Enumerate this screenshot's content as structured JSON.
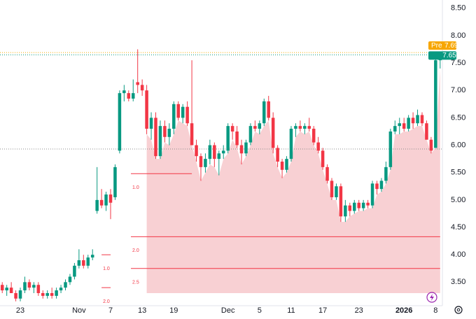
{
  "chart_data": {
    "type": "candlestick",
    "up_color": "#089981",
    "down_color": "#f23645",
    "candles": [
      [
        3.45,
        3.5,
        3.3,
        3.35
      ],
      [
        3.35,
        3.45,
        3.25,
        3.4
      ],
      [
        3.4,
        3.5,
        3.3,
        3.3
      ],
      [
        3.3,
        3.35,
        3.15,
        3.2
      ],
      [
        3.2,
        3.4,
        3.15,
        3.35
      ],
      [
        3.35,
        3.6,
        3.3,
        3.5
      ],
      [
        3.5,
        3.55,
        3.35,
        3.4
      ],
      [
        3.4,
        3.5,
        3.3,
        3.45
      ],
      [
        3.45,
        3.5,
        3.25,
        3.3
      ],
      [
        3.3,
        3.35,
        3.2,
        3.25
      ],
      [
        3.25,
        3.35,
        3.2,
        3.3
      ],
      [
        3.3,
        3.4,
        3.2,
        3.25
      ],
      [
        3.25,
        3.4,
        3.2,
        3.35
      ],
      [
        3.35,
        3.45,
        3.3,
        3.4
      ],
      [
        3.4,
        3.55,
        3.35,
        3.5
      ],
      [
        3.5,
        3.65,
        3.45,
        3.6
      ],
      [
        3.6,
        3.85,
        3.55,
        3.8
      ],
      [
        3.8,
        4.1,
        3.75,
        3.9
      ],
      [
        3.9,
        4.0,
        3.75,
        3.8
      ],
      [
        3.8,
        4.0,
        3.75,
        3.95
      ],
      [
        3.95,
        4.1,
        3.9,
        4.0
      ],
      [
        4.8,
        5.6,
        4.75,
        5.0
      ],
      [
        5.0,
        5.2,
        4.85,
        4.9
      ],
      [
        4.9,
        5.15,
        4.8,
        5.1
      ],
      [
        5.1,
        5.2,
        4.65,
        4.95
      ],
      [
        5.05,
        5.65,
        5.0,
        5.6
      ],
      [
        5.9,
        7.0,
        5.85,
        6.95
      ],
      [
        6.95,
        7.1,
        6.8,
        7.0
      ],
      [
        6.95,
        7.0,
        6.8,
        6.85
      ],
      [
        6.85,
        7.2,
        6.8,
        6.95
      ],
      [
        7.15,
        7.75,
        6.95,
        7.1
      ],
      [
        7.1,
        7.2,
        6.9,
        7.0
      ],
      [
        7.0,
        7.1,
        6.2,
        6.3
      ],
      [
        6.3,
        6.6,
        6.1,
        6.5
      ],
      [
        6.5,
        6.6,
        5.75,
        5.8
      ],
      [
        5.8,
        6.45,
        5.75,
        6.35
      ],
      [
        6.35,
        6.45,
        6.05,
        6.15
      ],
      [
        6.15,
        6.4,
        6.0,
        6.3
      ],
      [
        6.3,
        6.8,
        6.2,
        6.75
      ],
      [
        6.75,
        6.8,
        6.45,
        6.5
      ],
      [
        6.5,
        6.75,
        6.4,
        6.7
      ],
      [
        6.7,
        6.8,
        6.35,
        6.4
      ],
      [
        6.4,
        7.55,
        6.0,
        6.0
      ],
      [
        6.0,
        6.1,
        5.7,
        5.8
      ],
      [
        5.8,
        5.85,
        5.35,
        5.6
      ],
      [
        5.6,
        5.85,
        5.5,
        5.75
      ],
      [
        5.75,
        6.1,
        5.65,
        6.0
      ],
      [
        6.0,
        6.05,
        5.6,
        5.75
      ],
      [
        5.75,
        5.9,
        5.45,
        5.85
      ],
      [
        5.85,
        6.0,
        5.75,
        5.9
      ],
      [
        5.9,
        6.4,
        5.85,
        6.35
      ],
      [
        6.35,
        6.4,
        6.1,
        6.25
      ],
      [
        6.25,
        6.35,
        5.95,
        6.0
      ],
      [
        6.0,
        6.1,
        5.65,
        5.85
      ],
      [
        5.85,
        6.1,
        5.8,
        6.05
      ],
      [
        6.05,
        6.4,
        6.0,
        6.35
      ],
      [
        6.35,
        6.45,
        6.25,
        6.3
      ],
      [
        6.3,
        6.45,
        6.2,
        6.4
      ],
      [
        6.4,
        6.85,
        6.35,
        6.8
      ],
      [
        6.8,
        6.9,
        6.45,
        6.5
      ],
      [
        6.5,
        6.6,
        5.85,
        5.95
      ],
      [
        5.95,
        6.0,
        5.6,
        5.7
      ],
      [
        5.7,
        5.75,
        5.4,
        5.55
      ],
      [
        5.55,
        5.8,
        5.5,
        5.75
      ],
      [
        5.75,
        6.35,
        5.7,
        6.3
      ],
      [
        6.3,
        6.4,
        6.15,
        6.35
      ],
      [
        6.35,
        6.45,
        6.25,
        6.3
      ],
      [
        6.3,
        6.4,
        6.2,
        6.35
      ],
      [
        6.35,
        6.5,
        6.25,
        6.3
      ],
      [
        6.3,
        6.35,
        6.0,
        6.05
      ],
      [
        6.05,
        6.15,
        5.85,
        5.9
      ],
      [
        5.9,
        5.95,
        5.55,
        5.6
      ],
      [
        5.6,
        5.65,
        5.3,
        5.35
      ],
      [
        5.35,
        5.4,
        5.0,
        5.05
      ],
      [
        5.05,
        5.3,
        5.0,
        5.25
      ],
      [
        5.25,
        5.3,
        4.6,
        4.7
      ],
      [
        4.7,
        5.0,
        4.6,
        4.9
      ],
      [
        4.9,
        4.95,
        4.7,
        4.8
      ],
      [
        4.8,
        5.0,
        4.75,
        4.95
      ],
      [
        4.95,
        5.0,
        4.8,
        4.85
      ],
      [
        4.85,
        5.0,
        4.8,
        4.95
      ],
      [
        4.95,
        5.0,
        4.85,
        4.9
      ],
      [
        4.9,
        5.35,
        4.85,
        5.3
      ],
      [
        5.3,
        5.35,
        5.1,
        5.2
      ],
      [
        5.2,
        5.4,
        5.15,
        5.35
      ],
      [
        5.35,
        5.7,
        5.3,
        5.6
      ],
      [
        5.6,
        6.3,
        5.55,
        6.25
      ],
      [
        6.25,
        6.45,
        6.2,
        6.35
      ],
      [
        6.35,
        6.5,
        6.2,
        6.4
      ],
      [
        6.4,
        6.5,
        6.25,
        6.3
      ],
      [
        6.3,
        6.55,
        6.25,
        6.5
      ],
      [
        6.5,
        6.6,
        6.3,
        6.4
      ],
      [
        6.4,
        6.65,
        6.35,
        6.55
      ],
      [
        6.55,
        6.6,
        6.35,
        6.4
      ],
      [
        6.4,
        6.45,
        6.1,
        6.1
      ],
      [
        6.1,
        6.15,
        5.85,
        5.9
      ],
      [
        5.95,
        7.6,
        5.95,
        7.55
      ],
      [
        7.55,
        7.7,
        7.4,
        7.65
      ]
    ],
    "xlim": [
      -0.5,
      97.5
    ],
    "xticks": [
      {
        "value": 4,
        "label": "23"
      },
      {
        "value": 17,
        "label": "Nov"
      },
      {
        "value": 24,
        "label": "7"
      },
      {
        "value": 31,
        "label": "13"
      },
      {
        "value": 38,
        "label": "19"
      },
      {
        "value": 50,
        "label": "Dec"
      },
      {
        "value": 57,
        "label": "5"
      },
      {
        "value": 64,
        "label": "11"
      },
      {
        "value": 71,
        "label": "17"
      },
      {
        "value": 79,
        "label": "23"
      },
      {
        "value": 89,
        "label": "2026"
      },
      {
        "value": 96,
        "label": "8"
      }
    ],
    "ylim": [
      3.07,
      8.65
    ],
    "yticks": [
      {
        "value": 3.5,
        "label": "3.50"
      },
      {
        "value": 4,
        "label": "4.00"
      },
      {
        "value": 4.5,
        "label": "4.50"
      },
      {
        "value": 5,
        "label": "5.00"
      },
      {
        "value": 5.5,
        "label": "5.50"
      },
      {
        "value": 6,
        "label": "6.00"
      },
      {
        "value": 6.5,
        "label": "6.50"
      },
      {
        "value": 7,
        "label": "7.00"
      },
      {
        "value": 7.5,
        "label": "7.50"
      },
      {
        "value": 8,
        "label": "8.00"
      },
      {
        "value": 8.5,
        "label": "8.50"
      }
    ],
    "pre_market": {
      "tag": "Pre",
      "value": 7.69,
      "label": "7.69",
      "color": "#f7a600"
    },
    "last_price": {
      "value": 7.65,
      "label": "7.65",
      "color": "#089981"
    },
    "prev_close": 5.93,
    "shaded_range": {
      "from": 32,
      "to": 97,
      "floor": 3.3,
      "color": "#f8d0d3"
    },
    "fib_levels": [
      {
        "value": 5.48,
        "label": "1.0",
        "from": 28.5,
        "to": 42
      },
      {
        "value": 4.33,
        "label": "2.0",
        "from": 28.5,
        "to": 97
      },
      {
        "value": 3.75,
        "label": "2.5",
        "from": 28.5,
        "to": 97
      }
    ],
    "fib_small": [
      {
        "value": 4.0,
        "label": "1.0",
        "from": 22,
        "to": 24
      },
      {
        "value": 3.4,
        "label": "2.0",
        "from": 22,
        "to": 24
      }
    ]
  }
}
